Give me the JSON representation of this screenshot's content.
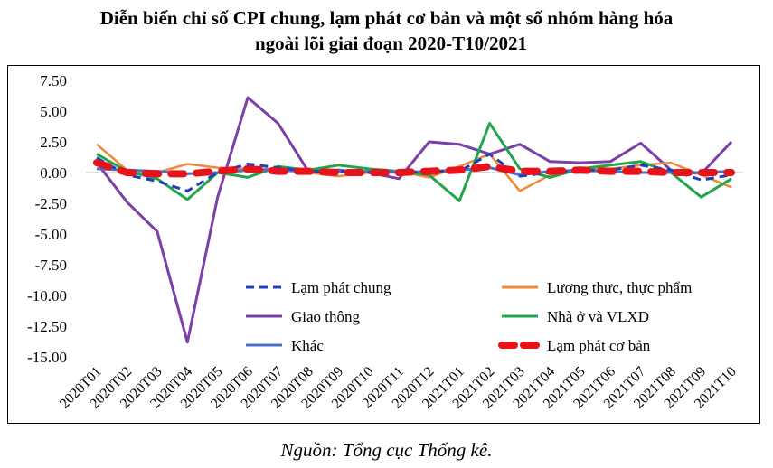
{
  "chart_data": {
    "type": "line",
    "title_line1": "Diễn biến chỉ số CPI chung, lạm phát cơ bản và một số nhóm hàng hóa",
    "title_line2": "ngoài lõi giai đoạn 2020-T10/2021",
    "source": "Nguồn: Tổng cục Thống kê.",
    "categories": [
      "2020T01",
      "2020T02",
      "2020T03",
      "2020T04",
      "2020T05",
      "2020T06",
      "2020T07",
      "2020T08",
      "2020T09",
      "2020T10",
      "2020T11",
      "2020T12",
      "2021T01",
      "2021T02",
      "2021T03",
      "2021T04",
      "2021T05",
      "2021T06",
      "2021T07",
      "2021T08",
      "2021T09",
      "2021T10"
    ],
    "y_ticks": [
      "7.50",
      "5.00",
      "2.50",
      "0.00",
      "-2.50",
      "-5.00",
      "-7.50",
      "-10.00",
      "-12.50",
      "-15.00"
    ],
    "ylim": [
      -15,
      7.5
    ],
    "grid": false,
    "legend": "bottom-right-inside",
    "series": [
      {
        "name": "Lạm phát chung",
        "color": "#1f3fbf",
        "style": "dashed",
        "width": 3,
        "values": [
          1.2,
          -0.2,
          -0.7,
          -1.5,
          0.0,
          0.7,
          0.4,
          0.1,
          0.1,
          0.0,
          0.0,
          0.1,
          0.1,
          1.5,
          -0.3,
          0.0,
          0.2,
          0.2,
          0.6,
          0.2,
          -0.6,
          -0.2
        ]
      },
      {
        "name": "Lương thực, thực phẩm",
        "color": "#ee8a3a",
        "style": "solid",
        "width": 2.5,
        "values": [
          2.3,
          0.2,
          0.0,
          0.7,
          0.4,
          0.3,
          0.3,
          0.0,
          -0.3,
          0.0,
          0.1,
          -0.4,
          0.5,
          1.5,
          -1.5,
          -0.2,
          0.2,
          0.3,
          0.6,
          0.8,
          -0.2,
          -1.2
        ]
      },
      {
        "name": "Giao thông",
        "color": "#7a3fa8",
        "style": "solid",
        "width": 3,
        "values": [
          0.8,
          -2.4,
          -4.8,
          -13.8,
          -2.0,
          6.1,
          4.0,
          0.1,
          0.2,
          0.0,
          -0.5,
          2.5,
          2.3,
          1.5,
          2.3,
          0.9,
          0.8,
          0.9,
          2.4,
          0.2,
          -0.1,
          2.5
        ]
      },
      {
        "name": "Nhà ở  và VLXD",
        "color": "#22a64a",
        "style": "solid",
        "width": 3,
        "values": [
          1.5,
          0.1,
          -0.5,
          -2.2,
          0.0,
          -0.4,
          0.5,
          0.2,
          0.6,
          0.3,
          0.1,
          -0.2,
          -2.3,
          4.0,
          0.3,
          -0.4,
          0.3,
          0.6,
          0.9,
          0.0,
          -2.0,
          -0.5
        ]
      },
      {
        "name": "Khác",
        "color": "#4a72c4",
        "style": "solid",
        "width": 3,
        "values": [
          0.3,
          0.2,
          0.1,
          -0.1,
          0.0,
          0.2,
          0.2,
          0.1,
          0.1,
          0.1,
          0.0,
          0.1,
          0.2,
          0.4,
          -0.2,
          0.1,
          0.2,
          0.1,
          0.0,
          0.0,
          0.0,
          0.1
        ]
      },
      {
        "name": "Lạm phát cơ bản",
        "color": "#e8121a",
        "style": "dashed-bold",
        "width": 8,
        "values": [
          0.8,
          0.0,
          -0.1,
          -0.1,
          0.1,
          0.3,
          0.1,
          0.1,
          0.0,
          0.0,
          0.0,
          0.1,
          0.2,
          0.5,
          0.1,
          0.1,
          0.2,
          0.1,
          0.1,
          0.0,
          0.0,
          0.0
        ]
      }
    ]
  }
}
